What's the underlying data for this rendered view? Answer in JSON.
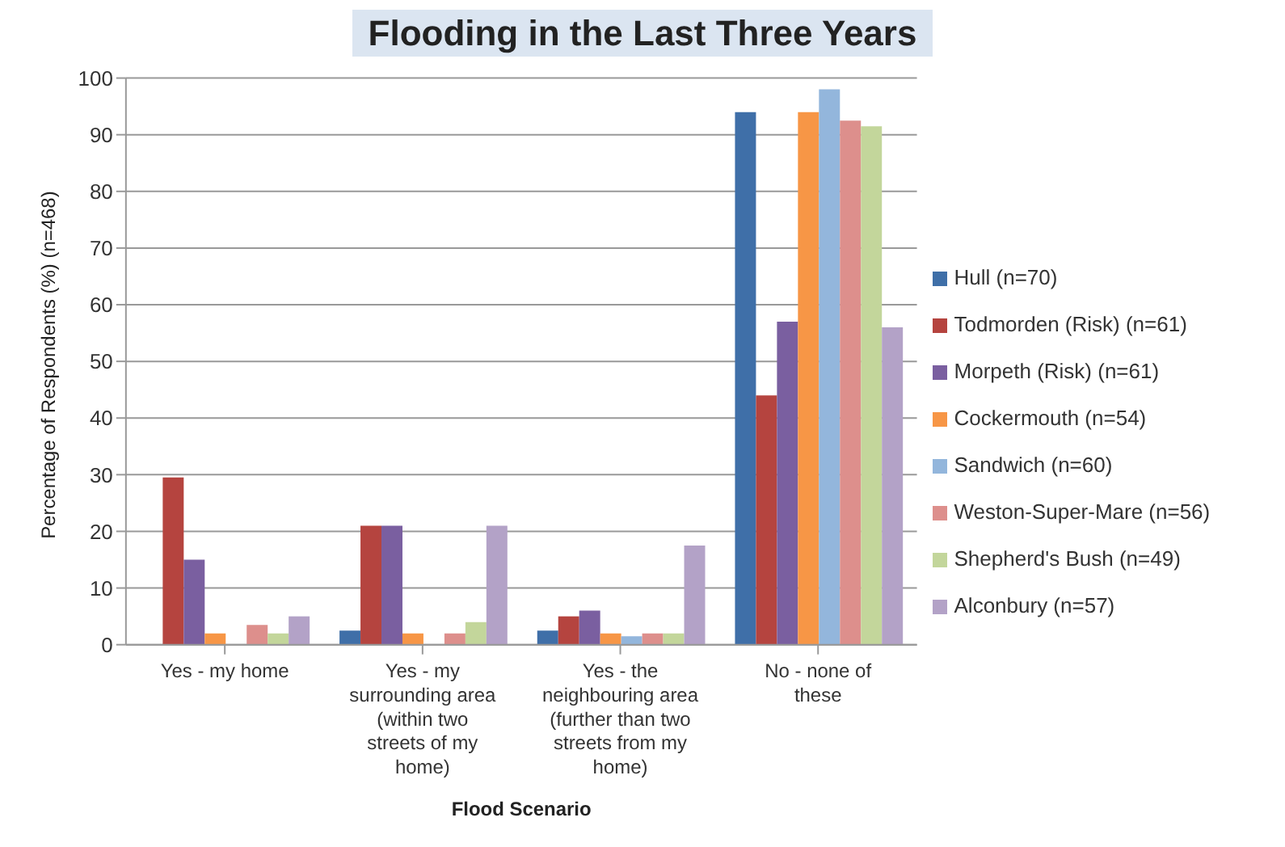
{
  "chart_data": {
    "type": "bar",
    "title": "Flooding in the Last Three Years",
    "xlabel": "Flood Scenario",
    "ylabel": "Percentage of Respondents (%) (n=468)",
    "categories": [
      "Yes - my home",
      "Yes - my surrounding area (within two streets of my home)",
      "Yes - the neighbouring area (further than two streets from my home)",
      "No - none of these"
    ],
    "series": [
      {
        "name": "Hull (n=70)",
        "color": "#3f6fa8",
        "values": [
          0,
          2.5,
          2.5,
          94
        ]
      },
      {
        "name": "Todmorden (Risk) (n=61)",
        "color": "#b5443f",
        "values": [
          29.5,
          21,
          5,
          44
        ]
      },
      {
        "name": "Morpeth (Risk) (n=61)",
        "color": "#7a5fa0",
        "values": [
          15,
          21,
          6,
          57
        ]
      },
      {
        "name": "Cockermouth (n=54)",
        "color": "#f79646",
        "values": [
          2,
          2,
          2,
          94
        ]
      },
      {
        "name": "Sandwich (n=60)",
        "color": "#93b6dc",
        "values": [
          0,
          0,
          1.5,
          98
        ]
      },
      {
        "name": "Weston-Super-Mare (n=56)",
        "color": "#dd8f8c",
        "values": [
          3.5,
          2,
          2,
          92.5
        ]
      },
      {
        "name": "Shepherd's Bush (n=49)",
        "color": "#c3d69b",
        "values": [
          2,
          4,
          2,
          91.5
        ]
      },
      {
        "name": "Alconbury (n=57)",
        "color": "#b3a2c7",
        "values": [
          5,
          21,
          17.5,
          56
        ]
      }
    ],
    "ylim": [
      0,
      100
    ],
    "yticks": [
      0,
      10,
      20,
      30,
      40,
      50,
      60,
      70,
      80,
      90,
      100
    ],
    "grid": "y",
    "legend": "right"
  }
}
